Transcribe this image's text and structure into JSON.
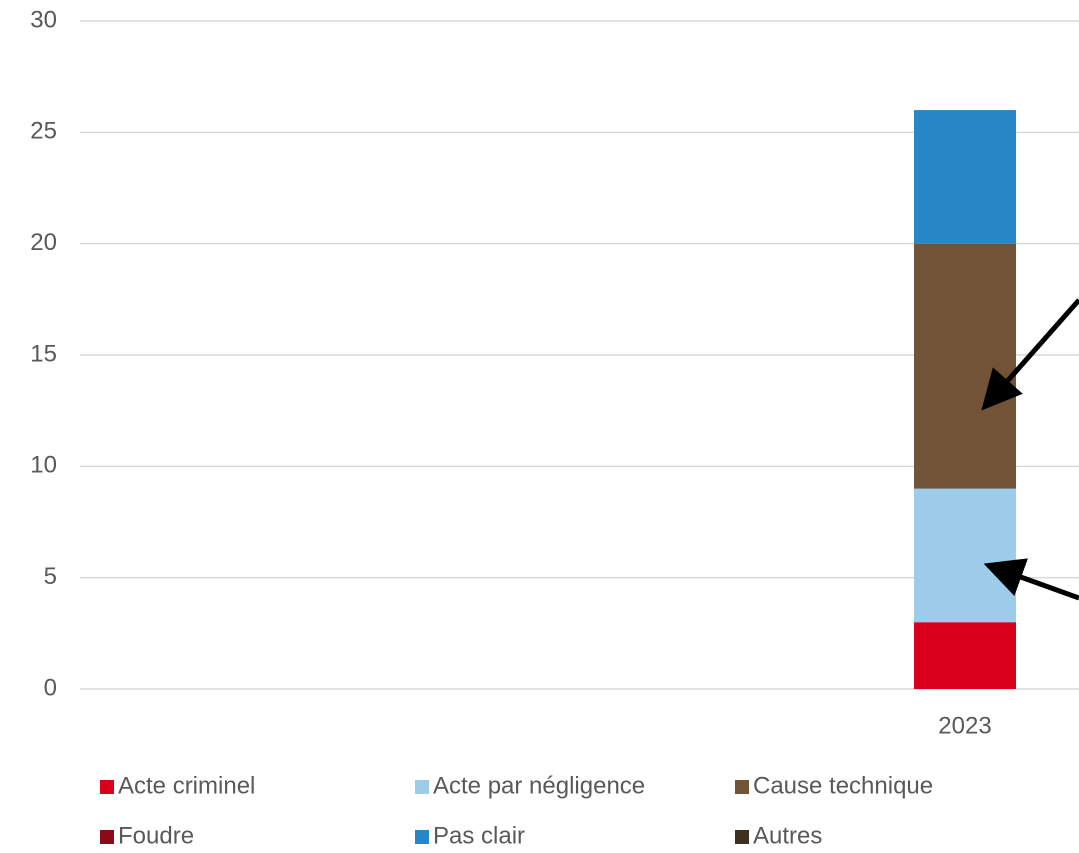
{
  "chart_data": {
    "type": "stacked_bar",
    "categories": [
      "2023"
    ],
    "series": [
      {
        "name": "Acte criminel",
        "color": "#d9001b",
        "values": [
          3
        ]
      },
      {
        "name": "Acte par négligence",
        "color": "#9dcbea",
        "values": [
          6
        ]
      },
      {
        "name": "Cause technique",
        "color": "#725337",
        "values": [
          11
        ]
      },
      {
        "name": "Foudre",
        "color": "#8b0a1a",
        "values": [
          0
        ]
      },
      {
        "name": "Pas clair",
        "color": "#2787c6",
        "values": [
          6
        ]
      },
      {
        "name": "Autres",
        "color": "#3f3120",
        "values": [
          0
        ]
      }
    ],
    "ylim": [
      0,
      30
    ],
    "yticks": [
      0,
      5,
      10,
      15,
      20,
      25,
      30
    ],
    "grid": true
  }
}
